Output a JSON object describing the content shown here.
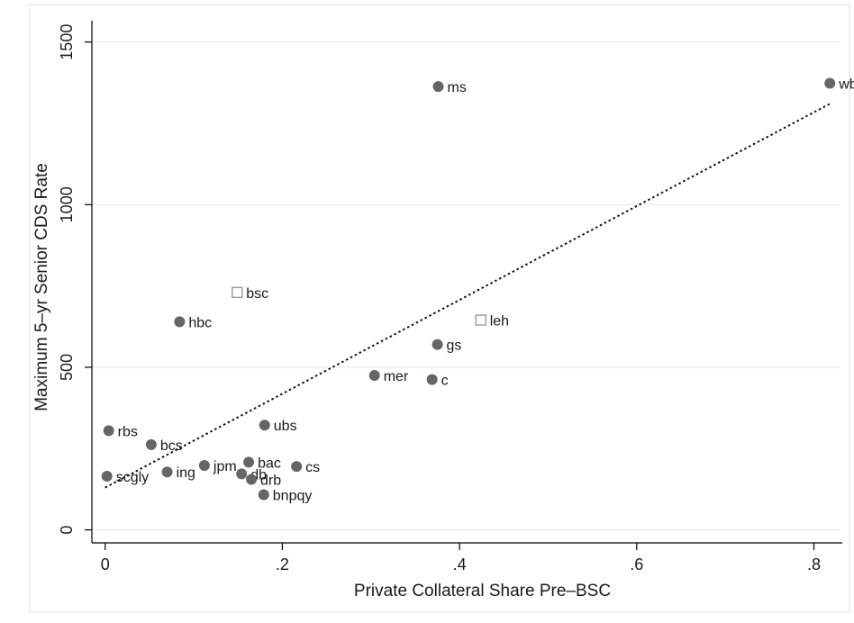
{
  "chart_data": {
    "type": "scatter",
    "xlabel": "Private Collateral Share Pre–BSC",
    "ylabel": "Maximum 5–yr Senior CDS Rate",
    "xlim": [
      -0.015,
      0.83
    ],
    "ylim": [
      -40,
      1560
    ],
    "x_ticks": [
      {
        "value": 0,
        "label": "0"
      },
      {
        "value": 0.2,
        "label": ".2"
      },
      {
        "value": 0.4,
        "label": ".4"
      },
      {
        "value": 0.6,
        "label": ".6"
      },
      {
        "value": 0.8,
        "label": ".8"
      }
    ],
    "y_ticks": [
      {
        "value": 0,
        "label": "0"
      },
      {
        "value": 500,
        "label": "500"
      },
      {
        "value": 1000,
        "label": "1000"
      },
      {
        "value": 1500,
        "label": "1500"
      }
    ],
    "grid": "horizontal",
    "points": [
      {
        "label": "ms",
        "x": 0.376,
        "y": 1363,
        "marker": "filled-circle"
      },
      {
        "label": "wb",
        "x": 0.818,
        "y": 1373,
        "marker": "filled-circle"
      },
      {
        "label": "bsc",
        "x": 0.149,
        "y": 730,
        "marker": "hollow-square"
      },
      {
        "label": "leh",
        "x": 0.424,
        "y": 645,
        "marker": "hollow-square"
      },
      {
        "label": "hbc",
        "x": 0.084,
        "y": 640,
        "marker": "filled-circle"
      },
      {
        "label": "gs",
        "x": 0.375,
        "y": 570,
        "marker": "filled-circle"
      },
      {
        "label": "mer",
        "x": 0.304,
        "y": 475,
        "marker": "filled-circle"
      },
      {
        "label": "c",
        "x": 0.369,
        "y": 462,
        "marker": "filled-circle"
      },
      {
        "label": "rbs",
        "x": 0.004,
        "y": 305,
        "marker": "filled-circle"
      },
      {
        "label": "ubs",
        "x": 0.18,
        "y": 322,
        "marker": "filled-circle"
      },
      {
        "label": "bcs",
        "x": 0.052,
        "y": 262,
        "marker": "filled-circle"
      },
      {
        "label": "bac",
        "x": 0.162,
        "y": 208,
        "marker": "filled-circle"
      },
      {
        "label": "jpm",
        "x": 0.112,
        "y": 198,
        "marker": "filled-circle"
      },
      {
        "label": "cs",
        "x": 0.216,
        "y": 195,
        "marker": "filled-circle"
      },
      {
        "label": "ing",
        "x": 0.07,
        "y": 178,
        "marker": "filled-circle"
      },
      {
        "label": "db",
        "x": 0.154,
        "y": 172,
        "marker": "filled-circle"
      },
      {
        "label": "scgly",
        "x": 0.002,
        "y": 165,
        "marker": "filled-circle"
      },
      {
        "label": "drb",
        "x": 0.165,
        "y": 155,
        "marker": "filled-circle"
      },
      {
        "label": "bnpqy",
        "x": 0.179,
        "y": 108,
        "marker": "filled-circle"
      }
    ],
    "fit_line": {
      "style": "dotted",
      "start": {
        "x": 0.0,
        "y": 130
      },
      "end": {
        "x": 0.818,
        "y": 1310
      }
    },
    "colors": {
      "filled_marker": "#666666",
      "hollow_marker": "#999999",
      "text": "#1a1a1a",
      "axis": "#000000",
      "grid": "#eaeaea",
      "frame": "#ebebeb"
    }
  }
}
